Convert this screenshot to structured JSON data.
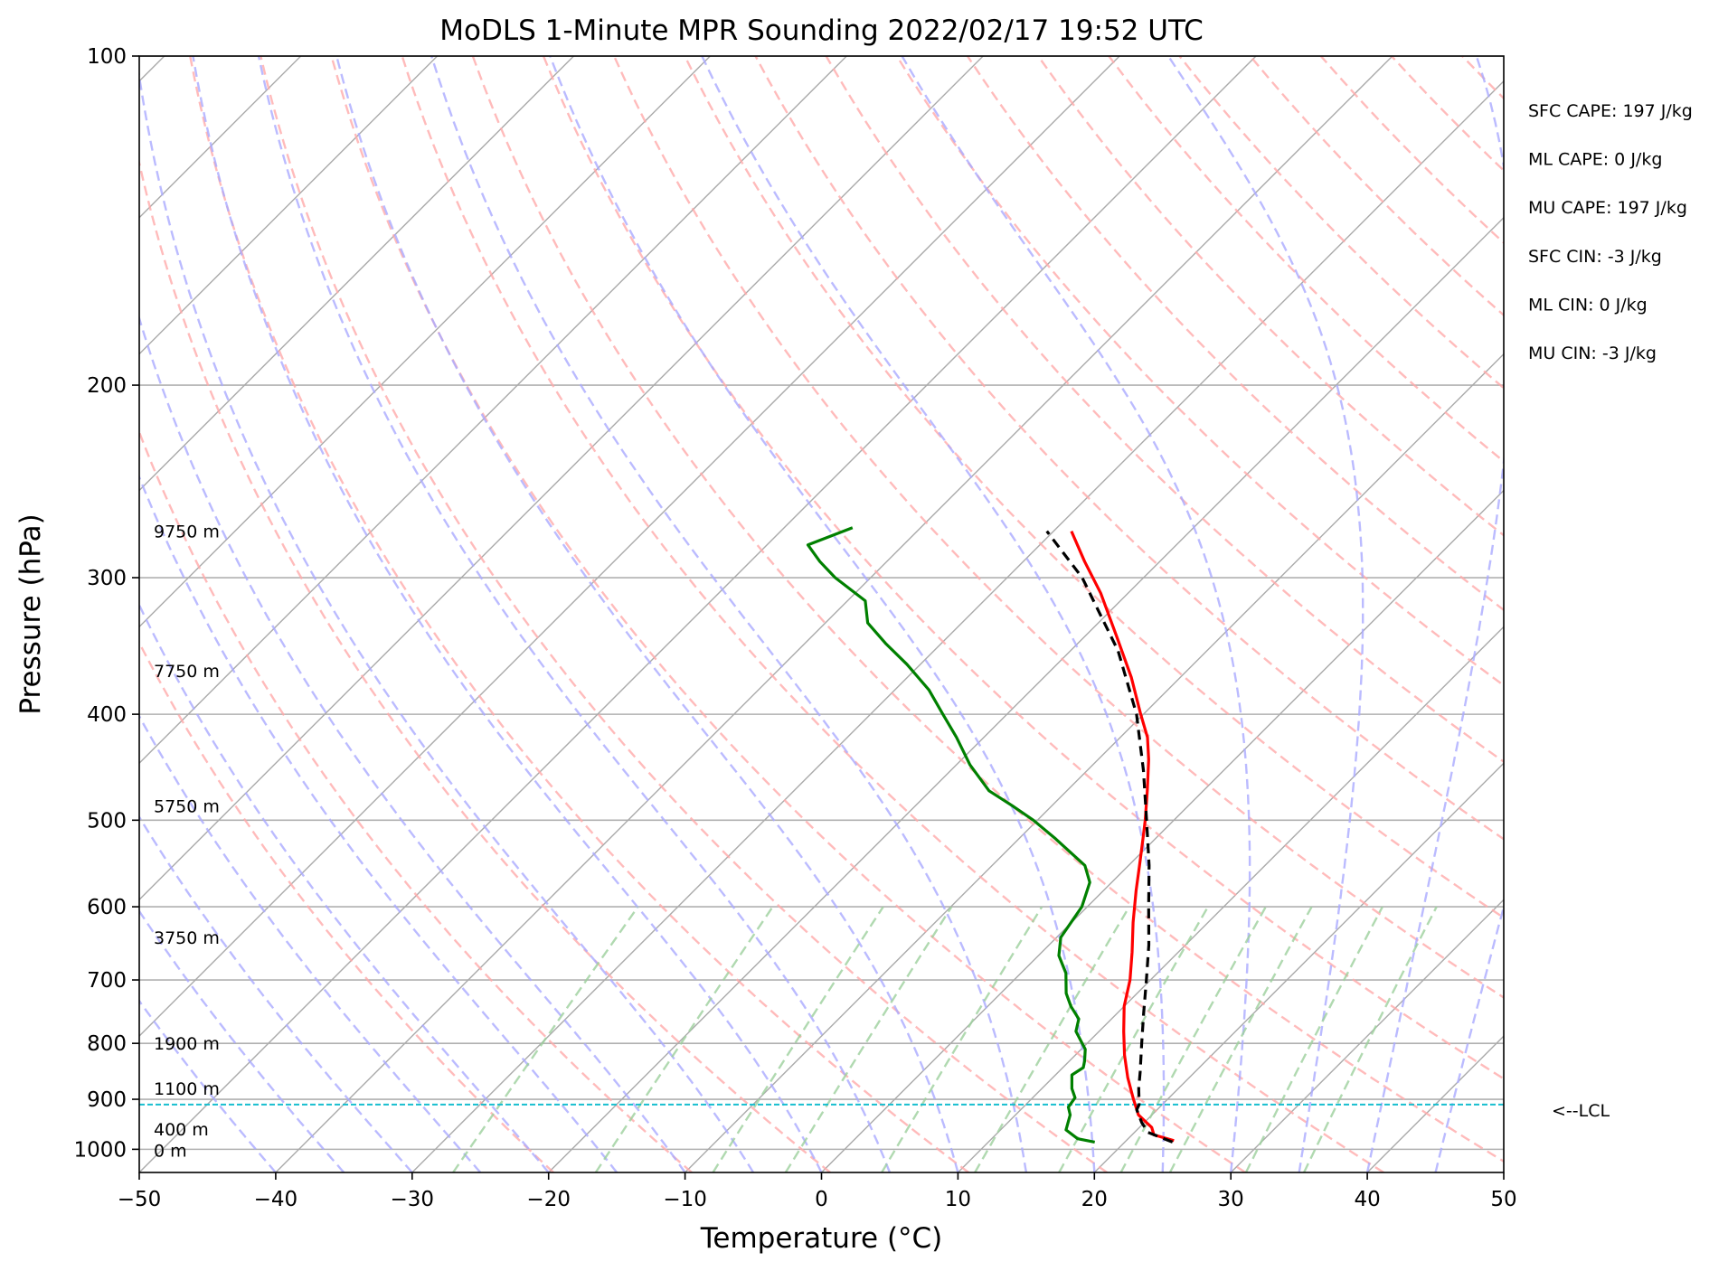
{
  "chart_data": {
    "type": "skew-t",
    "title": "MoDLS 1-Minute MPR Sounding 2022/02/17 19:52 UTC",
    "xlabel": "Temperature (°C)",
    "ylabel": "Pressure (hPa)",
    "xlim": [
      -50,
      50
    ],
    "ylim": [
      1050,
      100
    ],
    "yscale": "log",
    "x_ticks": [
      -50,
      -40,
      -30,
      -20,
      -10,
      0,
      10,
      20,
      30,
      40,
      50
    ],
    "x_tick_labels": [
      "−50",
      "−40",
      "−30",
      "−20",
      "−10",
      "0",
      "10",
      "20",
      "30",
      "40",
      "50"
    ],
    "y_ticks": [
      100,
      200,
      300,
      400,
      500,
      600,
      700,
      800,
      900,
      1000
    ],
    "y_tick_labels": [
      "100",
      "200",
      "300",
      "400",
      "500",
      "600",
      "700",
      "800",
      "900",
      "1000"
    ],
    "grid": true,
    "series": [
      {
        "key": "temperature",
        "color": "#ff0000",
        "points": [
          [
            982,
            23.5
          ],
          [
            970,
            21.6
          ],
          [
            955,
            20.9
          ],
          [
            930,
            19.0
          ],
          [
            900,
            17.5
          ],
          [
            860,
            15.5
          ],
          [
            820,
            13.6
          ],
          [
            780,
            11.8
          ],
          [
            740,
            10.0
          ],
          [
            700,
            8.5
          ],
          [
            660,
            6.6
          ],
          [
            620,
            4.5
          ],
          [
            580,
            2.4
          ],
          [
            550,
            0.8
          ],
          [
            520,
            -0.9
          ],
          [
            500,
            -2.1
          ],
          [
            470,
            -4.1
          ],
          [
            440,
            -6.3
          ],
          [
            420,
            -8.0
          ],
          [
            400,
            -10.2
          ],
          [
            370,
            -13.6
          ],
          [
            340,
            -17.6
          ],
          [
            310,
            -22.0
          ],
          [
            290,
            -25.5
          ],
          [
            272,
            -28.7
          ]
        ]
      },
      {
        "key": "dewpoint",
        "color": "#008000",
        "points": [
          [
            985,
            17.8
          ],
          [
            978,
            16.3
          ],
          [
            960,
            14.8
          ],
          [
            930,
            14.0
          ],
          [
            915,
            13.3
          ],
          [
            897,
            13.1
          ],
          [
            880,
            12.2
          ],
          [
            855,
            11.2
          ],
          [
            842,
            11.5
          ],
          [
            830,
            11.1
          ],
          [
            810,
            10.3
          ],
          [
            780,
            8.3
          ],
          [
            760,
            7.6
          ],
          [
            740,
            6.1
          ],
          [
            720,
            4.8
          ],
          [
            690,
            3.3
          ],
          [
            665,
            1.5
          ],
          [
            640,
            0.3
          ],
          [
            600,
            -0.4
          ],
          [
            570,
            -1.6
          ],
          [
            550,
            -3.2
          ],
          [
            520,
            -7.3
          ],
          [
            500,
            -10.3
          ],
          [
            485,
            -12.9
          ],
          [
            470,
            -15.7
          ],
          [
            445,
            -19.0
          ],
          [
            420,
            -22.0
          ],
          [
            400,
            -24.7
          ],
          [
            380,
            -27.5
          ],
          [
            360,
            -31.0
          ],
          [
            345,
            -34.0
          ],
          [
            330,
            -36.9
          ],
          [
            315,
            -38.7
          ],
          [
            300,
            -42.6
          ],
          [
            290,
            -44.9
          ],
          [
            280,
            -47.0
          ],
          [
            270,
            -45.0
          ]
        ]
      },
      {
        "key": "parcel",
        "color": "#000000",
        "dashed": true,
        "points": [
          [
            985,
            23.5
          ],
          [
            965,
            21.0
          ],
          [
            945,
            19.8
          ],
          [
            920,
            18.5
          ],
          [
            910,
            18.3
          ],
          [
            880,
            17.1
          ],
          [
            850,
            16.0
          ],
          [
            800,
            14.0
          ],
          [
            750,
            11.9
          ],
          [
            700,
            9.7
          ],
          [
            650,
            7.3
          ],
          [
            600,
            4.5
          ],
          [
            550,
            1.5
          ],
          [
            500,
            -2.0
          ],
          [
            450,
            -5.9
          ],
          [
            400,
            -10.5
          ],
          [
            350,
            -16.5
          ],
          [
            300,
            -24.5
          ],
          [
            272,
            -30.5
          ]
        ]
      }
    ],
    "lcl_pressure": 910,
    "lcl_label": "<--LCL",
    "height_labels": [
      {
        "label": "9750 m",
        "p": 272
      },
      {
        "label": "7750 m",
        "p": 365
      },
      {
        "label": "5750 m",
        "p": 485
      },
      {
        "label": "3750 m",
        "p": 640
      },
      {
        "label": "1900 m",
        "p": 800
      },
      {
        "label": "1100 m",
        "p": 880
      },
      {
        "label": "400 m",
        "p": 958
      },
      {
        "label": "0 m",
        "p": 1002
      }
    ],
    "stats": [
      "SFC CAPE: 197 J/kg",
      "ML CAPE: 0 J/kg",
      "MU CAPE: 197 J/kg",
      "SFC CIN: -3 J/kg",
      "ML CIN: 0 J/kg",
      "MU CIN: -3 J/kg"
    ],
    "background_lines": {
      "isotherm_color": "#aaaaaa",
      "dry_adiabat_color": "#ffaaaa",
      "moist_adiabat_color": "#aaaaff",
      "mixing_ratio_color": "#9ccf9c",
      "lcl_color": "#17becf"
    }
  }
}
